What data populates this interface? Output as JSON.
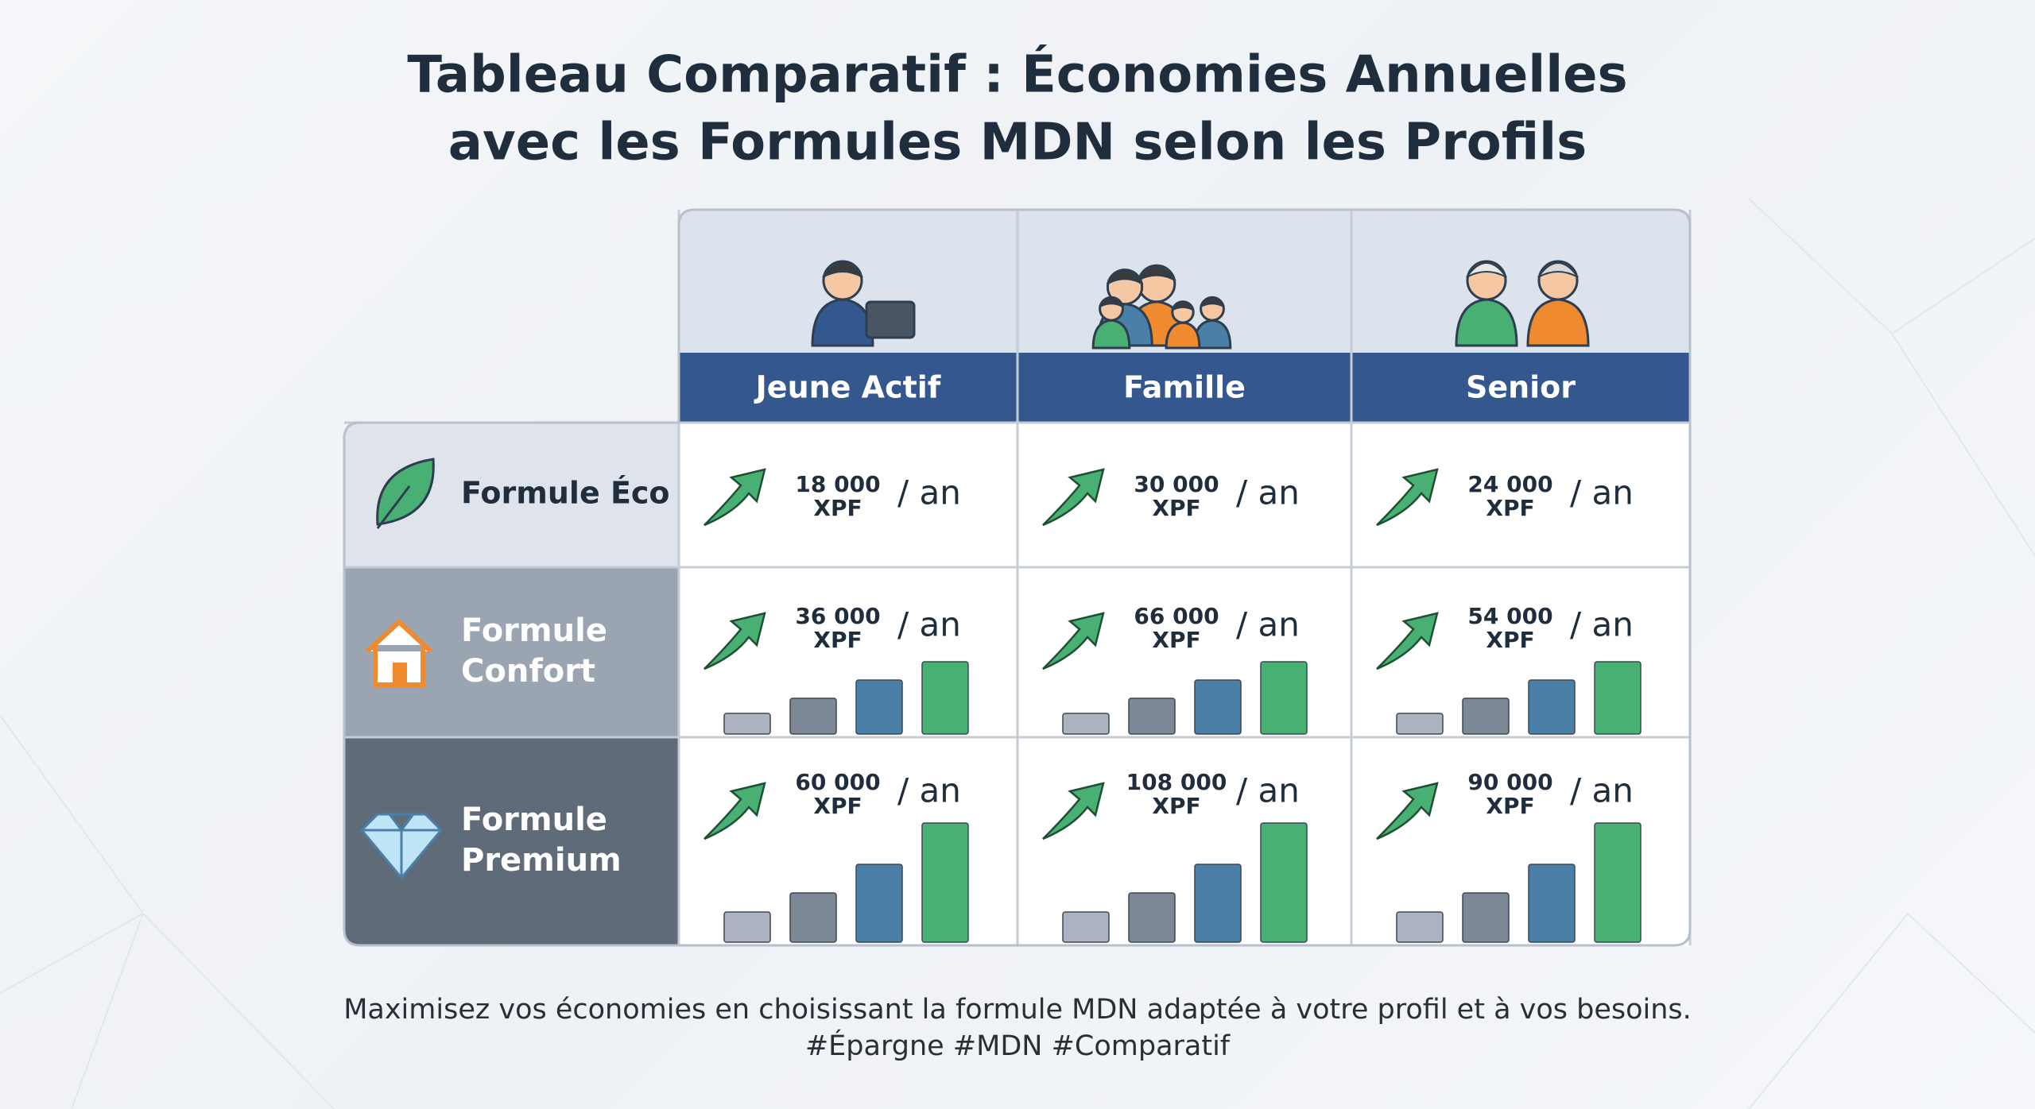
{
  "title": {
    "lines": [
      "Tableau Comparatif : Économies Annuelles",
      "avec les Formules MDN selon les Profils"
    ]
  },
  "table": {
    "columns": [
      "Jeune Actif",
      "Famille",
      "Senior"
    ],
    "rows": [
      {
        "label": "Formule Éco",
        "cells": [
          {
            "amount": "18 000",
            "currency": "XPF",
            "unit": "/ an"
          },
          {
            "amount": "30 000",
            "currency": "XPF",
            "unit": "/ an"
          },
          {
            "amount": "24 000",
            "currency": "XPF",
            "unit": "/ an"
          }
        ]
      },
      {
        "label": "Formule Confort",
        "cells": [
          {
            "amount": "36 000",
            "currency": "XPF",
            "unit": "/ an"
          },
          {
            "amount": "66 000",
            "currency": "XPF",
            "unit": "/ an"
          },
          {
            "amount": "54 000",
            "currency": "XPF",
            "unit": "/ an"
          }
        ]
      },
      {
        "label": "Formule Premium",
        "cells": [
          {
            "amount": "60 000",
            "currency": "XPF",
            "unit": "/ an"
          },
          {
            "amount": "108 000",
            "currency": "XPF",
            "unit": "/ an"
          },
          {
            "amount": "90 000",
            "currency": "XPF",
            "unit": "/ an"
          }
        ]
      }
    ]
  },
  "footer": {
    "lines": [
      "Maximisez vos économies en choisissant la formule MDN adaptée à votre profil et à vos besoins.",
      "#Épargne #MDN #Comparatif"
    ]
  }
}
